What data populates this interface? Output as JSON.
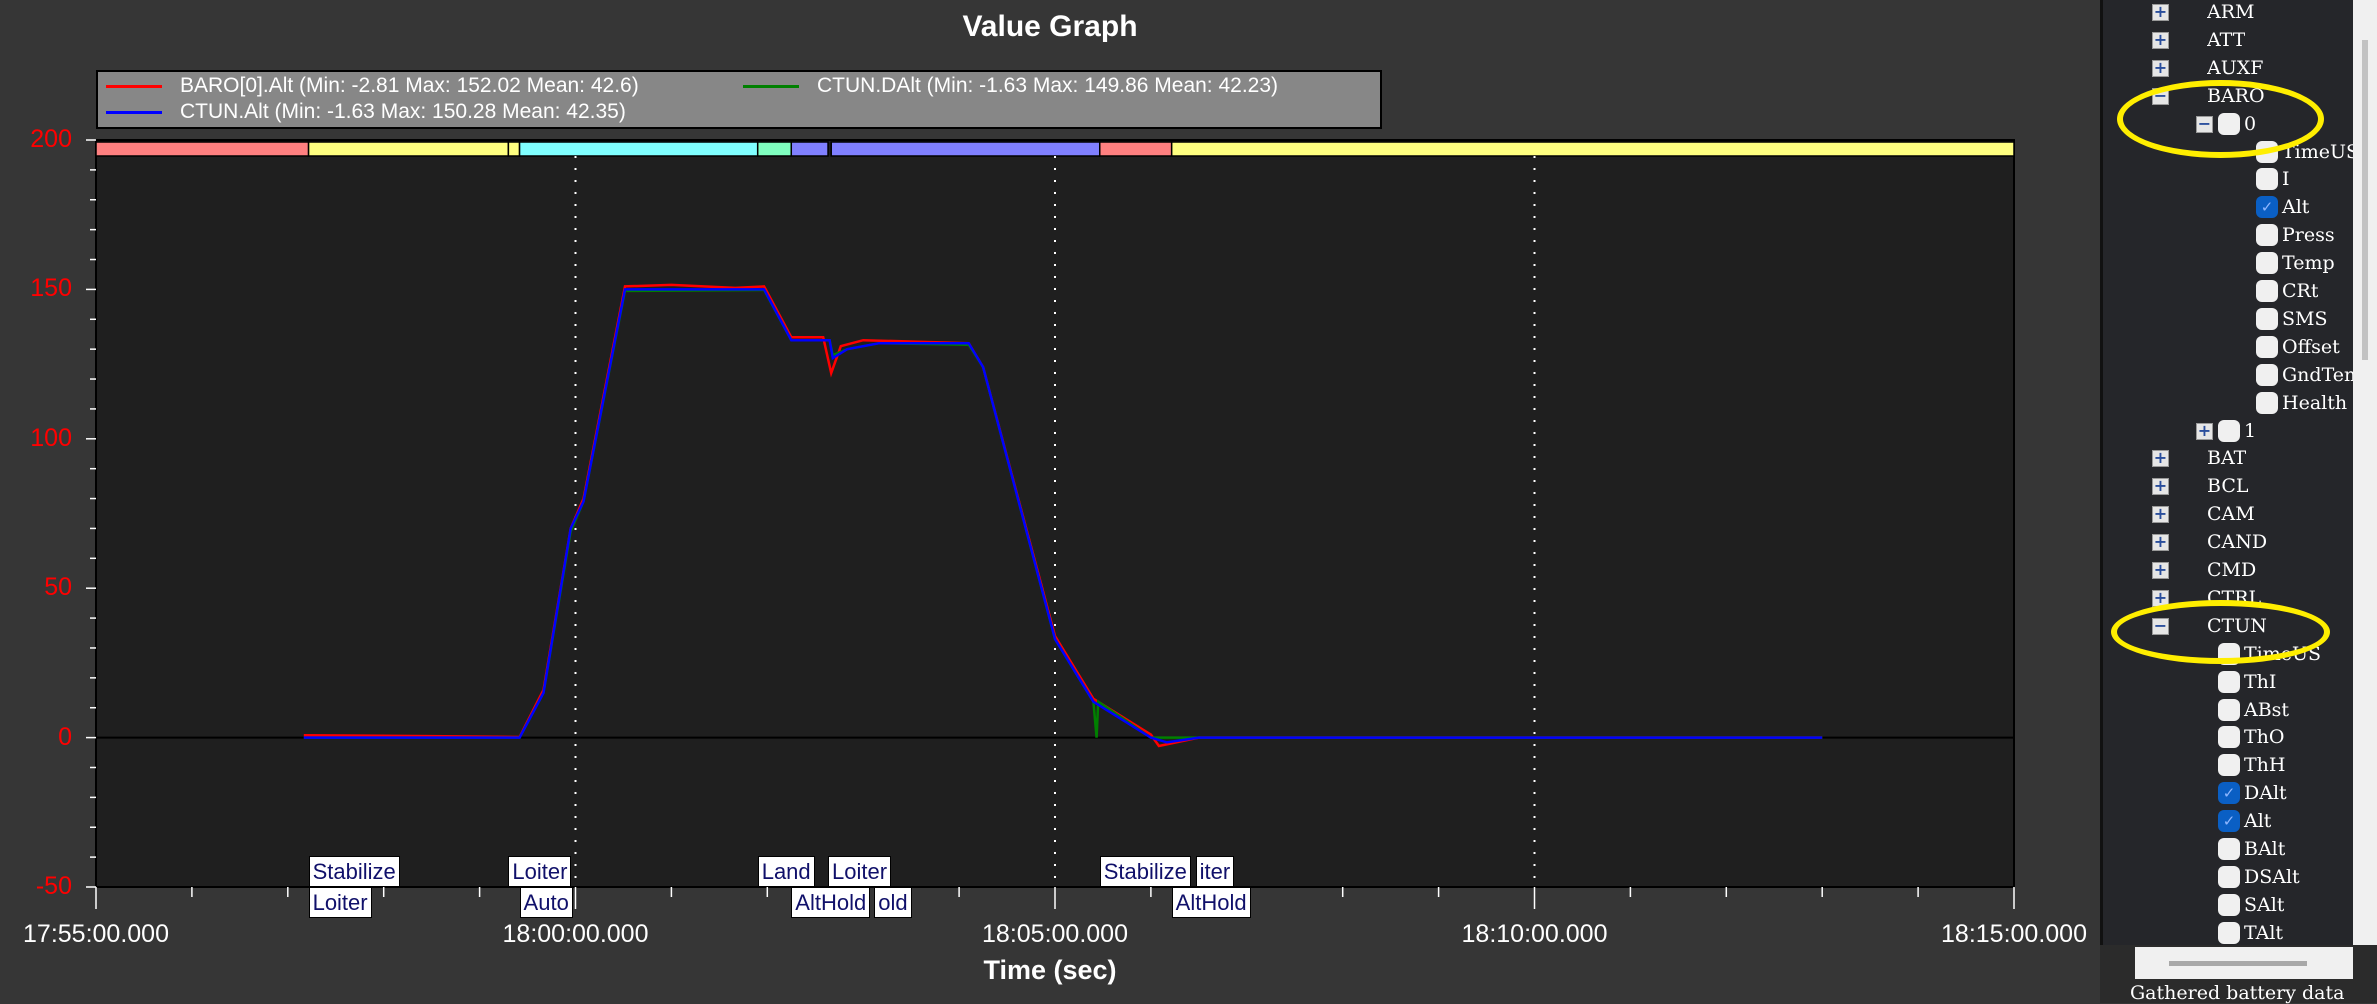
{
  "window": {
    "title": "Value Graph"
  },
  "legend": [
    {
      "label": "BARO[0].Alt  (Min: -2.81 Max: 152.02 Mean: 42.6)",
      "color": "#ff0000"
    },
    {
      "label": "CTUN.DAlt  (Min: -1.63 Max: 149.86 Mean: 42.23)",
      "color": "#008000"
    },
    {
      "label": "CTUN.Alt  (Min: -1.63 Max: 150.28 Mean: 42.35)",
      "color": "#0000ff"
    }
  ],
  "chart_data": {
    "type": "line",
    "title": "Value Graph",
    "xlabel": "Time (sec)",
    "ylabel": "",
    "xlim": [
      "17:55:00.000",
      "18:15:00.000"
    ],
    "ylim": [
      -50,
      200
    ],
    "yticks": [
      "200",
      "150",
      "100",
      "50",
      "0",
      "-50"
    ],
    "xticks": [
      "17:55:00.000",
      "18:00:00.000",
      "18:05:00.000",
      "18:10:00.000",
      "18:15:00.000"
    ],
    "grid": "vertical dotted at major x ticks",
    "y_axis_color": "#ff0000",
    "series": [
      {
        "name": "BARO[0].Alt",
        "color": "#ff0000",
        "points": [
          [
            "17:57:10",
            0.8
          ],
          [
            "17:58:30",
            0.5
          ],
          [
            "17:59:25",
            0.2
          ],
          [
            "17:59:40",
            16
          ],
          [
            "17:59:57",
            70
          ],
          [
            "18:00:05",
            80
          ],
          [
            "18:00:31",
            151
          ],
          [
            "18:01:00",
            151.5
          ],
          [
            "18:01:40",
            150.5
          ],
          [
            "18:01:58",
            151
          ],
          [
            "18:02:15",
            134
          ],
          [
            "18:02:35",
            134
          ],
          [
            "18:02:40",
            122
          ],
          [
            "18:02:46",
            131
          ],
          [
            "18:03:00",
            133
          ],
          [
            "18:04:06",
            132
          ],
          [
            "18:04:15",
            124
          ],
          [
            "18:05:00",
            34
          ],
          [
            "18:05:24",
            13
          ],
          [
            "18:06:00",
            1
          ],
          [
            "18:06:05",
            -2.8
          ],
          [
            "18:06:30",
            0
          ],
          [
            "18:13:00",
            0
          ]
        ]
      },
      {
        "name": "CTUN.DAlt",
        "color": "#008000",
        "points": [
          [
            "17:57:10",
            0
          ],
          [
            "17:59:25",
            0
          ],
          [
            "17:59:40",
            15
          ],
          [
            "17:59:57",
            69
          ],
          [
            "18:00:05",
            79
          ],
          [
            "18:00:31",
            149.5
          ],
          [
            "18:01:58",
            149.8
          ],
          [
            "18:02:15",
            133
          ],
          [
            "18:02:39",
            133
          ],
          [
            "18:02:41",
            128
          ],
          [
            "18:02:50",
            130
          ],
          [
            "18:03:10",
            132
          ],
          [
            "18:04:06",
            131.5
          ],
          [
            "18:04:15",
            124
          ],
          [
            "18:05:00",
            33
          ],
          [
            "18:05:24",
            12
          ],
          [
            "18:05:26",
            0
          ],
          [
            "18:05:27",
            12
          ],
          [
            "18:06:00",
            0
          ],
          [
            "18:13:00",
            0
          ]
        ]
      },
      {
        "name": "CTUN.Alt",
        "color": "#0000ff",
        "points": [
          [
            "17:57:10",
            0
          ],
          [
            "17:59:25",
            0
          ],
          [
            "17:59:40",
            15
          ],
          [
            "17:59:57",
            70
          ],
          [
            "18:00:05",
            79
          ],
          [
            "18:00:31",
            150
          ],
          [
            "18:01:58",
            150
          ],
          [
            "18:02:15",
            133
          ],
          [
            "18:02:39",
            133
          ],
          [
            "18:02:41",
            127
          ],
          [
            "18:02:50",
            130
          ],
          [
            "18:03:10",
            132
          ],
          [
            "18:04:06",
            132
          ],
          [
            "18:04:15",
            124
          ],
          [
            "18:05:00",
            33
          ],
          [
            "18:05:24",
            12
          ],
          [
            "18:06:00",
            0
          ],
          [
            "18:06:10",
            -1.6
          ],
          [
            "18:06:30",
            0
          ],
          [
            "18:13:00",
            0
          ]
        ]
      }
    ],
    "mode_bar": [
      {
        "start": "17:55:00",
        "end": "17:57:13",
        "color": "#ff8080"
      },
      {
        "start": "17:57:13",
        "end": "17:59:18",
        "color": "#ffff80"
      },
      {
        "start": "17:59:18",
        "end": "17:59:25",
        "color": "#ffff80"
      },
      {
        "start": "17:59:25",
        "end": "18:01:54",
        "color": "#80ffff"
      },
      {
        "start": "18:01:54",
        "end": "18:02:15",
        "color": "#80ffc0"
      },
      {
        "start": "18:02:15",
        "end": "18:02:38",
        "color": "#8080ff"
      },
      {
        "start": "18:02:40",
        "end": "18:05:28",
        "color": "#8080ff"
      },
      {
        "start": "18:05:28",
        "end": "18:06:13",
        "color": "#ff8080"
      },
      {
        "start": "18:06:13",
        "end": "18:15:00",
        "color": "#ffff80"
      }
    ],
    "mode_labels": [
      {
        "text": "Stabilize",
        "time": "17:57:13",
        "row": "top"
      },
      {
        "text": "Loiter",
        "time": "17:57:13",
        "row": "bottom"
      },
      {
        "text": "Loiter",
        "time": "17:59:18",
        "row": "top"
      },
      {
        "text": "Auto",
        "time": "17:59:25",
        "row": "bottom"
      },
      {
        "text": "Land",
        "time": "18:01:54",
        "row": "top"
      },
      {
        "text": "Loiter",
        "time": "18:02:38",
        "row": "top"
      },
      {
        "text": "AltHold",
        "time": "18:02:15",
        "row": "bottom"
      },
      {
        "text": "old",
        "time": "18:03:05",
        "row": "bottom"
      },
      {
        "text": "Stabilize",
        "time": "18:05:28",
        "row": "top"
      },
      {
        "text": "iter",
        "time": "18:06:28",
        "row": "top"
      },
      {
        "text": "AltHold",
        "time": "18:06:13",
        "row": "bottom"
      }
    ]
  },
  "tree": {
    "nodes": [
      {
        "label": "ARM",
        "level": 0,
        "expander": "+"
      },
      {
        "label": "ATT",
        "level": 0,
        "expander": "+"
      },
      {
        "label": "AUXF",
        "level": 0,
        "expander": "+"
      },
      {
        "label": "BARO",
        "level": 0,
        "expander": "-",
        "highlighted": true
      },
      {
        "label": "0",
        "level": 1,
        "expander": "-",
        "checked": false,
        "highlighted": true
      },
      {
        "label": "TimeUS",
        "level": 2,
        "checked": false
      },
      {
        "label": "I",
        "level": 2,
        "checked": false
      },
      {
        "label": "Alt",
        "level": 2,
        "checked": true
      },
      {
        "label": "Press",
        "level": 2,
        "checked": false
      },
      {
        "label": "Temp",
        "level": 2,
        "checked": false
      },
      {
        "label": "CRt",
        "level": 2,
        "checked": false
      },
      {
        "label": "SMS",
        "level": 2,
        "checked": false
      },
      {
        "label": "Offset",
        "level": 2,
        "checked": false
      },
      {
        "label": "GndTemp",
        "level": 2,
        "checked": false
      },
      {
        "label": "Health",
        "level": 2,
        "checked": false
      },
      {
        "label": "1",
        "level": 1,
        "expander": "+",
        "checked": false
      },
      {
        "label": "BAT",
        "level": 0,
        "expander": "+"
      },
      {
        "label": "BCL",
        "level": 0,
        "expander": "+"
      },
      {
        "label": "CAM",
        "level": 0,
        "expander": "+"
      },
      {
        "label": "CAND",
        "level": 0,
        "expander": "+"
      },
      {
        "label": "CMD",
        "level": 0,
        "expander": "+"
      },
      {
        "label": "CTRL",
        "level": 0,
        "expander": "+"
      },
      {
        "label": "CTUN",
        "level": 0,
        "expander": "-",
        "highlighted": true
      },
      {
        "label": "TimeUS",
        "level": 1,
        "checked": false
      },
      {
        "label": "ThI",
        "level": 1,
        "checked": false
      },
      {
        "label": "ABst",
        "level": 1,
        "checked": false
      },
      {
        "label": "ThO",
        "level": 1,
        "checked": false
      },
      {
        "label": "ThH",
        "level": 1,
        "checked": false
      },
      {
        "label": "DAlt",
        "level": 1,
        "checked": true
      },
      {
        "label": "Alt",
        "level": 1,
        "checked": true
      },
      {
        "label": "BAlt",
        "level": 1,
        "checked": false
      },
      {
        "label": "DSAlt",
        "level": 1,
        "checked": false
      },
      {
        "label": "SAlt",
        "level": 1,
        "checked": false
      },
      {
        "label": "TAlt",
        "level": 1,
        "checked": false
      }
    ],
    "highlight_color": "#ffee00"
  },
  "status": {
    "text": "Gathered battery data"
  }
}
